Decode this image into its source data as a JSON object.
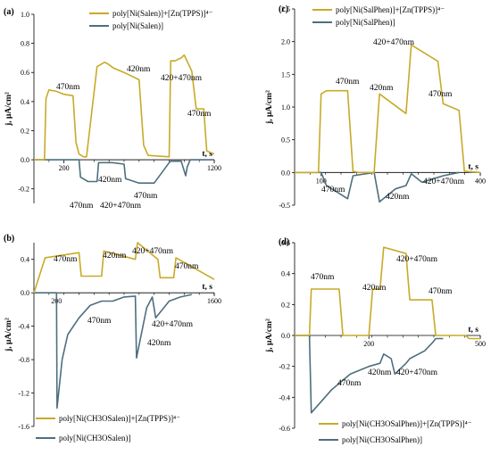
{
  "chart_data": [
    {
      "panel": "(a)",
      "type": "line",
      "ylabel": "j, μA/cm²",
      "xlabel": "t, s",
      "xlim": [
        0,
        1200
      ],
      "ylim": [
        -0.3,
        1.0
      ],
      "xticks": [
        200,
        1200
      ],
      "yticks": [
        -0.2,
        0.0,
        0.2,
        0.4,
        0.6,
        0.8,
        1.0
      ],
      "legend_position": "top-right",
      "series": [
        {
          "name": "poly[Ni(Salen)]+[Zn(TPPS)]⁴⁻",
          "color": "#c8aa28",
          "x": [
            0,
            70,
            80,
            100,
            150,
            200,
            260,
            280,
            300,
            330,
            350,
            420,
            470,
            490,
            530,
            600,
            700,
            730,
            760,
            900,
            910,
            940,
            980,
            1000,
            1050,
            1080,
            1130,
            1150,
            1200
          ],
          "y": [
            0.0,
            0.0,
            0.42,
            0.48,
            0.47,
            0.45,
            0.44,
            0.12,
            0.04,
            0.02,
            0.02,
            0.64,
            0.67,
            0.66,
            0.63,
            0.6,
            0.55,
            0.1,
            0.03,
            0.02,
            0.68,
            0.68,
            0.7,
            0.72,
            0.61,
            0.35,
            0.35,
            0.06,
            0.04
          ]
        },
        {
          "name": "poly[Ni(Salen)]",
          "color": "#4d6f7e",
          "x": [
            0,
            70,
            300,
            310,
            360,
            420,
            430,
            520,
            600,
            610,
            700,
            800,
            900,
            910,
            980,
            1010,
            1020,
            1040,
            1200
          ],
          "y": [
            0.0,
            0.0,
            0.0,
            -0.12,
            -0.15,
            -0.15,
            -0.02,
            -0.02,
            -0.03,
            -0.13,
            -0.16,
            -0.16,
            -0.02,
            -0.01,
            -0.01,
            -0.11,
            -0.05,
            0.0,
            0.0
          ]
        }
      ],
      "annotations": [
        "470nm",
        "420nm",
        "420+470nm",
        "470nm",
        "470nm",
        "420nm",
        "470nm",
        "420+470nm"
      ]
    },
    {
      "panel": "(b)",
      "type": "line",
      "ylabel": "j, μA/cm²",
      "xlabel": "t, s",
      "xlim": [
        0,
        1600
      ],
      "ylim": [
        -1.6,
        0.6
      ],
      "xticks": [
        200,
        1600
      ],
      "yticks": [
        -1.6,
        -1.2,
        -0.8,
        -0.4,
        0.0,
        0.4
      ],
      "legend_position": "bottom",
      "series": [
        {
          "name": "poly[Ni(CH3OSalen)]+[Zn(TPPS)]⁴⁻",
          "color": "#c8aa28",
          "x": [
            0,
            100,
            400,
            420,
            600,
            620,
            900,
            920,
            1100,
            1120,
            1240,
            1260,
            1600
          ],
          "y": [
            0.0,
            0.42,
            0.48,
            0.2,
            0.2,
            0.5,
            0.4,
            0.6,
            0.4,
            0.18,
            0.18,
            0.42,
            0.16
          ]
        },
        {
          "name": "poly[Ni(CH3OSalen)]",
          "color": "#4d6f7e",
          "x": [
            0,
            200,
            205,
            250,
            300,
            400,
            500,
            600,
            700,
            800,
            900,
            910,
            1000,
            1050,
            1080,
            1200,
            1300,
            1400
          ],
          "y": [
            0.0,
            0.0,
            -1.38,
            -0.8,
            -0.5,
            -0.3,
            -0.15,
            -0.1,
            -0.1,
            -0.05,
            -0.04,
            -0.78,
            -0.18,
            -0.05,
            -0.3,
            -0.1,
            -0.05,
            -0.02
          ]
        }
      ],
      "annotations": [
        "470nm",
        "420nm",
        "420+470nm",
        "470nm",
        "470nm",
        "420nm",
        "420+470nm"
      ]
    },
    {
      "panel": "(c)",
      "type": "line",
      "ylabel": "j, μA/cm²",
      "xlabel": "t, s",
      "xlim": [
        50,
        400
      ],
      "ylim": [
        -0.5,
        2.5
      ],
      "xticks": [
        100,
        400
      ],
      "yticks": [
        -0.5,
        0.0,
        0.5,
        1.0,
        1.5,
        2.0,
        2.5
      ],
      "legend_position": "top-right",
      "series": [
        {
          "name": "poly[Ni(SalPhen)]+[Zn(TPPS)]⁴⁻",
          "color": "#c8aa28",
          "x": [
            50,
            95,
            100,
            110,
            150,
            160,
            170,
            200,
            210,
            260,
            270,
            320,
            330,
            360,
            370,
            400
          ],
          "y": [
            0.0,
            0.0,
            1.2,
            1.25,
            1.25,
            0.02,
            0.0,
            0.0,
            1.2,
            0.9,
            1.95,
            1.7,
            1.05,
            0.95,
            0.02,
            0.0
          ]
        },
        {
          "name": "poly[Ni(SalPhen)]",
          "color": "#4d6f7e",
          "x": [
            50,
            100,
            110,
            150,
            160,
            200,
            210,
            240,
            260,
            270,
            290,
            310,
            330,
            360
          ],
          "y": [
            0.0,
            0.0,
            -0.2,
            -0.4,
            -0.05,
            0.0,
            -0.45,
            -0.25,
            -0.2,
            -0.02,
            -0.15,
            -0.1,
            -0.05,
            0.0
          ]
        }
      ],
      "annotations": [
        "420+470nm",
        "470nm",
        "420nm",
        "470nm",
        "470nm",
        "420nm",
        "420+470nm"
      ]
    },
    {
      "panel": "(d)",
      "type": "line",
      "ylabel": "j, μA/cm²",
      "xlabel": "t, s",
      "xlim": [
        0,
        500
      ],
      "ylim": [
        -0.6,
        0.6
      ],
      "xticks": [
        200,
        500
      ],
      "yticks": [
        -0.6,
        -0.4,
        -0.2,
        0.0,
        0.2,
        0.4,
        0.6
      ],
      "legend_position": "bottom",
      "series": [
        {
          "name": "poly[Ni(CH3OSalPhen)]+[Zn(TPPS)]⁴⁻",
          "color": "#c8aa28",
          "x": [
            0,
            40,
            45,
            120,
            130,
            200,
            210,
            230,
            240,
            300,
            310,
            370,
            380,
            460,
            470,
            500
          ],
          "y": [
            0.0,
            0.0,
            0.3,
            0.3,
            0.0,
            0.0,
            0.3,
            0.3,
            0.57,
            0.53,
            0.23,
            0.23,
            0.0,
            0.0,
            -0.02,
            -0.02
          ]
        },
        {
          "name": "poly[Ni(CH3OSalPhen)]",
          "color": "#4d6f7e",
          "x": [
            0,
            40,
            45,
            100,
            150,
            200,
            230,
            240,
            260,
            270,
            300,
            310,
            350,
            370,
            380,
            400
          ],
          "y": [
            0.0,
            0.0,
            -0.5,
            -0.35,
            -0.25,
            -0.2,
            -0.18,
            -0.12,
            -0.15,
            -0.25,
            -0.18,
            -0.15,
            -0.1,
            -0.05,
            -0.02,
            -0.02
          ]
        }
      ],
      "annotations": [
        "420+470nm",
        "470nm",
        "420nm",
        "470nm",
        "470nm",
        "420nm",
        "420+470nm"
      ]
    }
  ]
}
